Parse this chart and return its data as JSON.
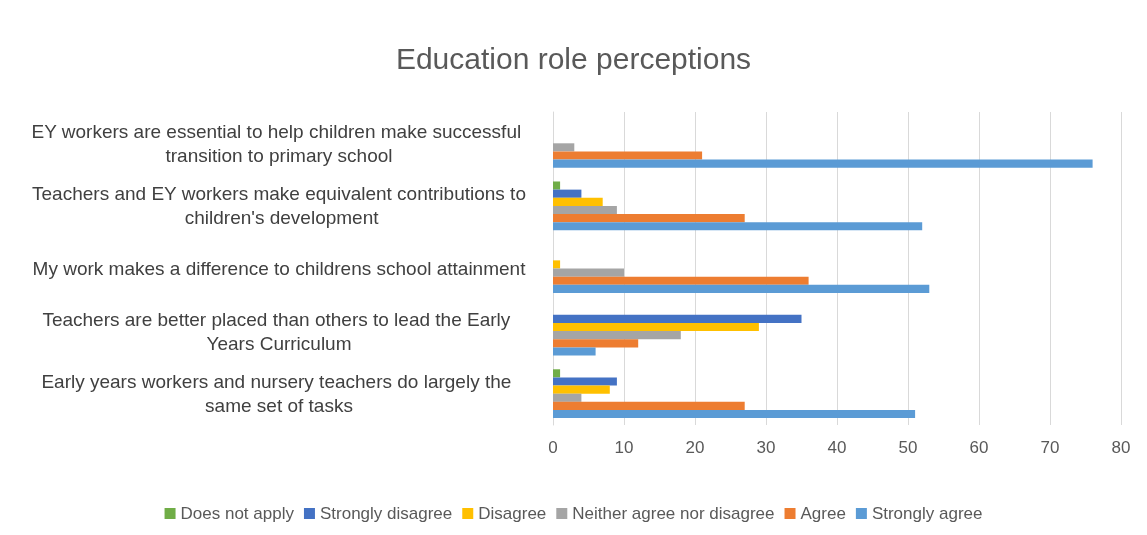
{
  "chart_data": {
    "type": "bar",
    "orientation": "horizontal",
    "title": "Education role perceptions",
    "categories": [
      "EY workers are essential to help children make successful transition to primary school",
      "Teachers and EY workers make equivalent contributions to children's development",
      "My work makes a difference to childrens school attainment",
      "Teachers are better placed than others to lead the Early Years Curriculum",
      "Early years workers and nursery teachers do largely the same set of tasks"
    ],
    "series": [
      {
        "name": "Does not apply",
        "color": "#70ad47",
        "values": [
          0,
          1,
          0,
          0,
          1
        ]
      },
      {
        "name": "Strongly disagree",
        "color": "#4472c4",
        "values": [
          0,
          4,
          0,
          35,
          9
        ]
      },
      {
        "name": "Disagree",
        "color": "#ffc000",
        "values": [
          0,
          7,
          1,
          29,
          8
        ]
      },
      {
        "name": "Neither agree nor disagree",
        "color": "#a5a5a5",
        "values": [
          3,
          9,
          10,
          18,
          4
        ]
      },
      {
        "name": "Agree",
        "color": "#ed7d31",
        "values": [
          21,
          27,
          36,
          12,
          27
        ]
      },
      {
        "name": "Strongly agree",
        "color": "#5b9bd5",
        "values": [
          76,
          52,
          53,
          6,
          51
        ]
      }
    ],
    "xlim": [
      0,
      80
    ],
    "xticks": [
      0,
      10,
      20,
      30,
      40,
      50,
      60,
      70,
      80
    ],
    "grid": "x",
    "legend": "bottom"
  }
}
